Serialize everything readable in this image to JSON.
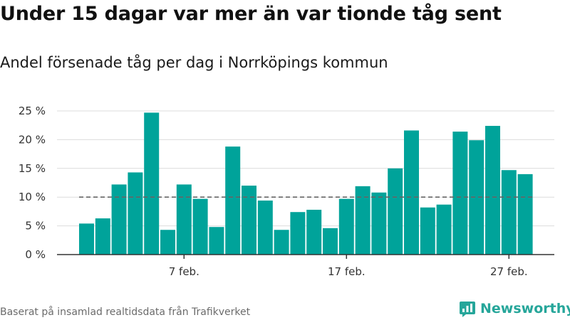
{
  "title": "Under 15 dagar var mer än var tionde tåg sent",
  "subtitle": "Andel försenade tåg per dag i Norrköpings kommun",
  "source": "Baserat på insamlad realtidsdata från Trafikverket",
  "brand": {
    "name": "Newsworthy",
    "logo_icon": "bar-chart-logo-icon"
  },
  "colors": {
    "bar": "#00a39a",
    "threshold": "#666666",
    "grid": "#dcdcdc",
    "brand": "#26a69a"
  },
  "chart_data": {
    "type": "bar",
    "x_start_date": "2023-02-01",
    "values": [
      5.4,
      6.3,
      12.2,
      14.3,
      24.7,
      4.3,
      12.2,
      9.7,
      4.8,
      18.8,
      12.0,
      9.4,
      4.3,
      7.4,
      7.8,
      4.6,
      9.7,
      11.9,
      10.8,
      15.0,
      21.6,
      8.2,
      8.7,
      21.4,
      19.9,
      22.4,
      14.7,
      14.0
    ],
    "xticks": [
      {
        "index": 6,
        "label": "7 feb."
      },
      {
        "index": 16,
        "label": "17 feb."
      },
      {
        "index": 26,
        "label": "27 feb."
      }
    ],
    "yticks": [
      0,
      5,
      10,
      15,
      20,
      25
    ],
    "ytick_labels": [
      "0 %",
      "5 %",
      "10 %",
      "15 %",
      "20 %",
      "25 %"
    ],
    "ylim": [
      0,
      25
    ],
    "threshold": 10,
    "grid": true
  }
}
